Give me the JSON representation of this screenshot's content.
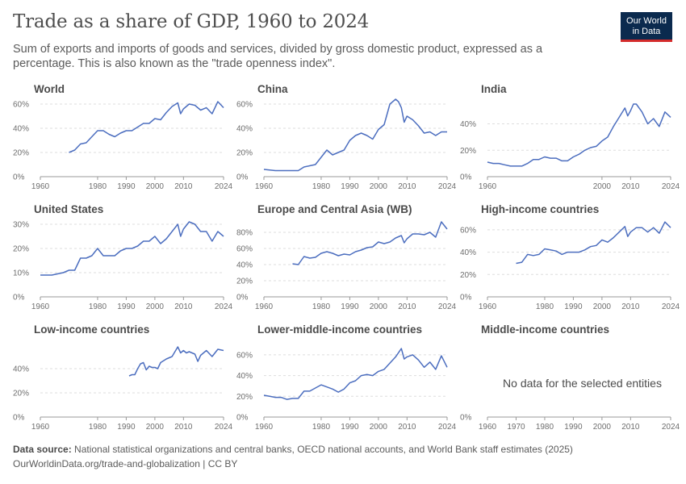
{
  "header": {
    "title": "Trade as a share of GDP, 1960 to 2024",
    "subtitle": "Sum of exports and imports of goods and services, divided by gross domestic product, expressed as a percentage. This is also known as the \"trade openness index\".",
    "logo_line1": "Our World",
    "logo_line2": "in Data"
  },
  "footer": {
    "source_label": "Data source:",
    "source_text": "National statistical organizations and central banks, OECD national accounts, and World Bank staff estimates (2025)",
    "url_text": "OurWorldinData.org/trade-and-globalization | CC BY"
  },
  "no_data_text": "No data for the selected entities",
  "colors": {
    "line": "#4c6ebf",
    "grid": "#dddddd",
    "axis": "#999999"
  },
  "chart_data": [
    {
      "type": "line",
      "title": "World",
      "xlim": [
        1960,
        2024
      ],
      "ylim": [
        0,
        60
      ],
      "yticks": [
        0,
        20,
        40,
        60
      ],
      "xticks": [
        1960,
        1980,
        1990,
        2000,
        2010,
        2024
      ],
      "unit": "%",
      "x": [
        1970,
        1972,
        1974,
        1976,
        1978,
        1980,
        1982,
        1984,
        1986,
        1988,
        1990,
        1992,
        1994,
        1996,
        1998,
        2000,
        2002,
        2004,
        2006,
        2008,
        2009,
        2010,
        2012,
        2014,
        2016,
        2018,
        2020,
        2022,
        2024
      ],
      "y": [
        20,
        22,
        27,
        28,
        33,
        38,
        38,
        35,
        33,
        36,
        38,
        38,
        41,
        44,
        44,
        48,
        47,
        53,
        58,
        61,
        52,
        56,
        60,
        59,
        55,
        57,
        52,
        62,
        57
      ]
    },
    {
      "type": "line",
      "title": "China",
      "xlim": [
        1960,
        2024
      ],
      "ylim": [
        0,
        60
      ],
      "yticks": [
        0,
        20,
        40,
        60
      ],
      "xticks": [
        1960,
        1980,
        1990,
        2000,
        2010,
        2024
      ],
      "unit": "%",
      "x": [
        1960,
        1964,
        1968,
        1970,
        1972,
        1974,
        1976,
        1978,
        1980,
        1982,
        1984,
        1986,
        1988,
        1990,
        1992,
        1994,
        1996,
        1998,
        2000,
        2002,
        2004,
        2006,
        2007,
        2008,
        2009,
        2010,
        2012,
        2014,
        2016,
        2018,
        2020,
        2022,
        2024
      ],
      "y": [
        6,
        5,
        5,
        5,
        5,
        8,
        9,
        10,
        16,
        22,
        18,
        20,
        22,
        30,
        34,
        36,
        34,
        31,
        39,
        43,
        60,
        64,
        62,
        57,
        45,
        50,
        47,
        42,
        36,
        37,
        34,
        37,
        37
      ]
    },
    {
      "type": "line",
      "title": "India",
      "xlim": [
        1960,
        2024
      ],
      "ylim": [
        0,
        55
      ],
      "yticks": [
        0,
        20,
        40
      ],
      "xticks": [
        1960,
        2000,
        2010,
        2024
      ],
      "unit": "%",
      "x": [
        1960,
        1962,
        1964,
        1966,
        1968,
        1970,
        1972,
        1974,
        1976,
        1978,
        1980,
        1982,
        1984,
        1986,
        1988,
        1990,
        1992,
        1994,
        1996,
        1998,
        2000,
        2002,
        2004,
        2006,
        2008,
        2009,
        2010,
        2011,
        2012,
        2014,
        2016,
        2018,
        2020,
        2022,
        2024
      ],
      "y": [
        11,
        10,
        10,
        9,
        8,
        8,
        8,
        10,
        13,
        13,
        15,
        14,
        14,
        12,
        12,
        15,
        17,
        20,
        22,
        23,
        27,
        30,
        38,
        45,
        52,
        46,
        50,
        55,
        55,
        49,
        40,
        44,
        38,
        49,
        45
      ]
    },
    {
      "type": "line",
      "title": "United States",
      "xlim": [
        1960,
        2024
      ],
      "ylim": [
        0,
        30
      ],
      "yticks": [
        0,
        10,
        20,
        30
      ],
      "xticks": [
        1960,
        1980,
        1990,
        2000,
        2010,
        2024
      ],
      "unit": "%",
      "x": [
        1960,
        1964,
        1968,
        1970,
        1972,
        1974,
        1976,
        1978,
        1980,
        1982,
        1984,
        1986,
        1988,
        1990,
        1992,
        1994,
        1996,
        1998,
        2000,
        2002,
        2004,
        2006,
        2008,
        2009,
        2010,
        2012,
        2014,
        2016,
        2018,
        2020,
        2022,
        2024
      ],
      "y": [
        9,
        9,
        10,
        11,
        11,
        16,
        16,
        17,
        20,
        17,
        17,
        17,
        19,
        20,
        20,
        21,
        23,
        23,
        25,
        22,
        24,
        27,
        30,
        25,
        28,
        31,
        30,
        27,
        27,
        23,
        27,
        25
      ]
    },
    {
      "type": "line",
      "title": "Europe and Central Asia (WB)",
      "xlim": [
        1960,
        2024
      ],
      "ylim": [
        0,
        90
      ],
      "yticks": [
        0,
        20,
        40,
        60,
        80
      ],
      "xticks": [
        1960,
        1980,
        1990,
        2000,
        2010,
        2024
      ],
      "unit": "%",
      "x": [
        1970,
        1972,
        1974,
        1976,
        1978,
        1980,
        1982,
        1984,
        1986,
        1988,
        1990,
        1992,
        1994,
        1996,
        1998,
        2000,
        2002,
        2004,
        2006,
        2008,
        2009,
        2010,
        2012,
        2014,
        2016,
        2018,
        2020,
        2022,
        2024
      ],
      "y": [
        41,
        40,
        50,
        48,
        49,
        54,
        56,
        54,
        51,
        53,
        52,
        56,
        58,
        61,
        62,
        68,
        66,
        68,
        73,
        76,
        67,
        72,
        78,
        78,
        77,
        80,
        74,
        93,
        84
      ]
    },
    {
      "type": "line",
      "title": "High-income countries",
      "xlim": [
        1960,
        2024
      ],
      "ylim": [
        0,
        65
      ],
      "yticks": [
        0,
        20,
        40,
        60
      ],
      "xticks": [
        1960,
        1980,
        1990,
        2000,
        2010,
        2024
      ],
      "unit": "%",
      "x": [
        1970,
        1972,
        1974,
        1976,
        1978,
        1980,
        1982,
        1984,
        1986,
        1988,
        1990,
        1992,
        1994,
        1996,
        1998,
        2000,
        2002,
        2004,
        2006,
        2008,
        2009,
        2010,
        2012,
        2014,
        2016,
        2018,
        2020,
        2022,
        2024
      ],
      "y": [
        30,
        31,
        38,
        37,
        38,
        43,
        42,
        41,
        38,
        40,
        40,
        40,
        42,
        45,
        46,
        51,
        49,
        53,
        58,
        63,
        54,
        58,
        62,
        62,
        58,
        62,
        57,
        67,
        62
      ]
    },
    {
      "type": "line",
      "title": "Low-income countries",
      "xlim": [
        1960,
        2024
      ],
      "ylim": [
        0,
        60
      ],
      "yticks": [
        0,
        20,
        40
      ],
      "xticks": [
        1960,
        1980,
        1990,
        2000,
        2010,
        2024
      ],
      "unit": "%",
      "x": [
        1991,
        1992,
        1993,
        1994,
        1995,
        1996,
        1997,
        1998,
        1999,
        2000,
        2001,
        2002,
        2004,
        2006,
        2008,
        2009,
        2010,
        2011,
        2012,
        2014,
        2015,
        2016,
        2018,
        2020,
        2022,
        2024
      ],
      "y": [
        34,
        35,
        35,
        40,
        44,
        45,
        39,
        42,
        41,
        41,
        40,
        45,
        48,
        50,
        58,
        53,
        55,
        53,
        54,
        52,
        46,
        51,
        55,
        50,
        56,
        55
      ]
    },
    {
      "type": "line",
      "title": "Lower-middle-income countries",
      "xlim": [
        1960,
        2024
      ],
      "ylim": [
        0,
        70
      ],
      "yticks": [
        0,
        20,
        40,
        60
      ],
      "xticks": [
        1960,
        1980,
        1990,
        2000,
        2010,
        2024
      ],
      "unit": "%",
      "x": [
        1960,
        1962,
        1964,
        1966,
        1968,
        1970,
        1972,
        1974,
        1976,
        1978,
        1980,
        1982,
        1984,
        1986,
        1988,
        1990,
        1992,
        1994,
        1996,
        1998,
        2000,
        2002,
        2004,
        2006,
        2008,
        2009,
        2010,
        2012,
        2014,
        2016,
        2018,
        2020,
        2022,
        2024
      ],
      "y": [
        21,
        20,
        19,
        19,
        17,
        18,
        18,
        25,
        25,
        28,
        31,
        29,
        27,
        24,
        27,
        33,
        35,
        40,
        41,
        40,
        44,
        46,
        52,
        58,
        66,
        56,
        58,
        60,
        55,
        48,
        53,
        46,
        59,
        48
      ]
    },
    {
      "type": "line",
      "title": "Middle-income countries",
      "xlim": [
        1960,
        2024
      ],
      "ylim": [
        0,
        60
      ],
      "yticks": [
        0
      ],
      "xticks": [
        1960,
        1970,
        1980,
        1990,
        2000,
        2010,
        2024
      ],
      "unit": "%",
      "x": [],
      "y": []
    }
  ]
}
